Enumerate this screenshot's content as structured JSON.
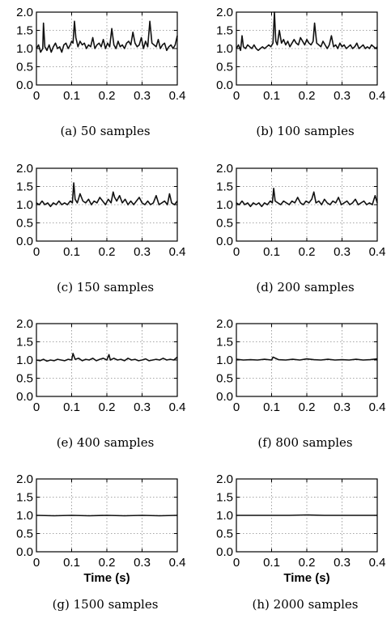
{
  "chart_data": [
    {
      "type": "line",
      "caption": "(a) 50 samples",
      "xlabel": "",
      "ylabel": "",
      "xlim": [
        0,
        0.4
      ],
      "ylim": [
        0,
        2.0
      ],
      "xticks": [
        "0",
        "0.1",
        "0.2",
        "0.3",
        "0.4"
      ],
      "yticks": [
        "0.0",
        "0.5",
        "1.0",
        "1.5",
        "2.0"
      ],
      "grid": true,
      "series": [
        {
          "x": [
            0,
            0.006,
            0.012,
            0.018,
            0.02,
            0.024,
            0.03,
            0.036,
            0.042,
            0.048,
            0.054,
            0.06,
            0.066,
            0.072,
            0.078,
            0.084,
            0.09,
            0.096,
            0.1,
            0.104,
            0.108,
            0.112,
            0.118,
            0.124,
            0.13,
            0.136,
            0.142,
            0.148,
            0.154,
            0.16,
            0.166,
            0.172,
            0.178,
            0.184,
            0.19,
            0.196,
            0.202,
            0.208,
            0.214,
            0.22,
            0.226,
            0.232,
            0.238,
            0.244,
            0.25,
            0.256,
            0.262,
            0.268,
            0.274,
            0.28,
            0.286,
            0.292,
            0.298,
            0.304,
            0.31,
            0.316,
            0.322,
            0.328,
            0.334,
            0.34,
            0.346,
            0.352,
            0.358,
            0.364,
            0.37,
            0.376,
            0.382,
            0.388,
            0.394,
            0.4
          ],
          "y": [
            1.0,
            1.1,
            0.9,
            1.0,
            1.7,
            1.05,
            0.95,
            1.1,
            0.9,
            1.05,
            1.15,
            1.0,
            1.05,
            0.9,
            1.1,
            1.15,
            1.0,
            1.1,
            1.2,
            1.15,
            1.75,
            1.3,
            1.05,
            1.2,
            1.1,
            1.15,
            1.0,
            1.1,
            1.05,
            1.3,
            1.0,
            1.1,
            1.15,
            1.05,
            1.25,
            1.0,
            1.15,
            1.05,
            1.55,
            1.1,
            1.0,
            1.2,
            1.05,
            1.1,
            1.0,
            1.15,
            1.2,
            1.1,
            1.45,
            1.15,
            1.05,
            1.1,
            1.3,
            1.0,
            1.2,
            1.05,
            1.75,
            1.15,
            1.1,
            1.05,
            1.25,
            1.0,
            1.1,
            1.15,
            0.95,
            1.05,
            1.1,
            1.0,
            1.1,
            1.35
          ]
        }
      ]
    },
    {
      "type": "line",
      "caption": "(b) 100 samples",
      "xlabel": "",
      "ylabel": "",
      "xlim": [
        0,
        0.4
      ],
      "ylim": [
        0,
        2.0
      ],
      "xticks": [
        "0",
        "0.1",
        "0.2",
        "0.3",
        "0.4"
      ],
      "yticks": [
        "0.0",
        "0.5",
        "1.0",
        "1.5",
        "2.0"
      ],
      "grid": true,
      "series": [
        {
          "x": [
            0,
            0.006,
            0.012,
            0.016,
            0.02,
            0.026,
            0.032,
            0.038,
            0.044,
            0.05,
            0.056,
            0.062,
            0.068,
            0.074,
            0.08,
            0.086,
            0.092,
            0.098,
            0.104,
            0.108,
            0.112,
            0.116,
            0.122,
            0.128,
            0.134,
            0.14,
            0.146,
            0.152,
            0.158,
            0.164,
            0.17,
            0.176,
            0.182,
            0.188,
            0.194,
            0.2,
            0.206,
            0.212,
            0.218,
            0.222,
            0.228,
            0.234,
            0.24,
            0.246,
            0.252,
            0.258,
            0.264,
            0.27,
            0.276,
            0.282,
            0.288,
            0.294,
            0.3,
            0.306,
            0.312,
            0.318,
            0.324,
            0.33,
            0.336,
            0.342,
            0.348,
            0.354,
            0.36,
            0.366,
            0.372,
            0.378,
            0.384,
            0.39,
            0.396,
            0.4
          ],
          "y": [
            1.0,
            1.1,
            0.95,
            1.35,
            1.05,
            1.0,
            1.1,
            1.05,
            1.0,
            1.1,
            1.0,
            0.95,
            1.0,
            1.05,
            1.0,
            1.05,
            1.1,
            1.05,
            1.15,
            2.0,
            1.2,
            1.1,
            1.5,
            1.15,
            1.25,
            1.1,
            1.2,
            1.05,
            1.15,
            1.25,
            1.15,
            1.1,
            1.3,
            1.2,
            1.1,
            1.25,
            1.15,
            1.1,
            1.2,
            1.7,
            1.15,
            1.1,
            1.05,
            1.2,
            1.1,
            1.0,
            1.1,
            1.35,
            1.05,
            1.1,
            1.0,
            1.15,
            1.05,
            1.1,
            1.0,
            1.05,
            1.1,
            1.0,
            1.05,
            1.15,
            1.0,
            1.05,
            1.1,
            1.0,
            1.05,
            1.0,
            1.1,
            1.05,
            1.0,
            1.05
          ]
        }
      ]
    },
    {
      "type": "line",
      "caption": "(c) 150 samples",
      "xlabel": "",
      "ylabel": "",
      "xlim": [
        0,
        0.4
      ],
      "ylim": [
        0,
        2.0
      ],
      "xticks": [
        "0",
        "0.1",
        "0.2",
        "0.3",
        "0.4"
      ],
      "yticks": [
        "0.0",
        "0.5",
        "1.0",
        "1.5",
        "2.0"
      ],
      "grid": true,
      "series": [
        {
          "x": [
            0,
            0.008,
            0.016,
            0.024,
            0.032,
            0.04,
            0.048,
            0.056,
            0.064,
            0.072,
            0.08,
            0.088,
            0.096,
            0.102,
            0.106,
            0.11,
            0.116,
            0.124,
            0.132,
            0.14,
            0.148,
            0.156,
            0.164,
            0.172,
            0.18,
            0.188,
            0.196,
            0.204,
            0.212,
            0.218,
            0.222,
            0.228,
            0.236,
            0.244,
            0.252,
            0.26,
            0.268,
            0.276,
            0.284,
            0.292,
            0.3,
            0.308,
            0.316,
            0.324,
            0.332,
            0.34,
            0.348,
            0.356,
            0.364,
            0.372,
            0.378,
            0.384,
            0.392,
            0.4
          ],
          "y": [
            1.05,
            1.0,
            1.1,
            1.0,
            1.05,
            0.95,
            1.05,
            1.0,
            1.1,
            1.0,
            1.05,
            1.0,
            1.1,
            1.05,
            1.6,
            1.15,
            1.05,
            1.3,
            1.1,
            1.05,
            1.15,
            1.0,
            1.1,
            1.05,
            1.2,
            1.1,
            1.0,
            1.15,
            1.05,
            1.35,
            1.2,
            1.1,
            1.25,
            1.05,
            1.15,
            1.0,
            1.1,
            1.0,
            1.1,
            1.2,
            1.05,
            1.0,
            1.1,
            1.0,
            1.05,
            1.25,
            1.0,
            1.05,
            1.1,
            1.0,
            1.3,
            1.05,
            1.0,
            1.1
          ]
        }
      ]
    },
    {
      "type": "line",
      "caption": "(d) 200 samples",
      "xlabel": "",
      "ylabel": "",
      "xlim": [
        0,
        0.4
      ],
      "ylim": [
        0,
        2.0
      ],
      "xticks": [
        "0",
        "0.1",
        "0.2",
        "0.3",
        "0.4"
      ],
      "yticks": [
        "0.0",
        "0.5",
        "1.0",
        "1.5",
        "2.0"
      ],
      "grid": true,
      "series": [
        {
          "x": [
            0,
            0.008,
            0.016,
            0.024,
            0.032,
            0.04,
            0.048,
            0.056,
            0.064,
            0.072,
            0.08,
            0.088,
            0.096,
            0.102,
            0.106,
            0.11,
            0.118,
            0.126,
            0.134,
            0.142,
            0.15,
            0.158,
            0.166,
            0.174,
            0.182,
            0.19,
            0.198,
            0.206,
            0.214,
            0.22,
            0.226,
            0.234,
            0.242,
            0.25,
            0.258,
            0.266,
            0.274,
            0.282,
            0.29,
            0.298,
            0.306,
            0.314,
            0.322,
            0.33,
            0.338,
            0.346,
            0.354,
            0.362,
            0.37,
            0.378,
            0.386,
            0.394,
            0.4
          ],
          "y": [
            1.05,
            1.0,
            1.1,
            1.0,
            1.05,
            0.95,
            1.05,
            1.0,
            1.05,
            0.95,
            1.05,
            1.0,
            1.1,
            1.05,
            1.45,
            1.1,
            1.05,
            1.0,
            1.1,
            1.05,
            1.0,
            1.1,
            1.05,
            1.2,
            1.05,
            1.0,
            1.1,
            1.05,
            1.15,
            1.35,
            1.05,
            1.1,
            1.0,
            1.15,
            1.05,
            1.0,
            1.1,
            1.05,
            1.2,
            1.0,
            1.05,
            1.1,
            1.0,
            1.05,
            1.15,
            1.0,
            1.05,
            1.1,
            1.0,
            1.05,
            1.0,
            1.25,
            1.05
          ]
        }
      ]
    },
    {
      "type": "line",
      "caption": "(e) 400 samples",
      "xlabel": "",
      "ylabel": "",
      "xlim": [
        0,
        0.4
      ],
      "ylim": [
        0,
        2.0
      ],
      "xticks": [
        "0",
        "0.1",
        "0.2",
        "0.3",
        "0.4"
      ],
      "yticks": [
        "0.0",
        "0.5",
        "1.0",
        "1.5",
        "2.0"
      ],
      "grid": true,
      "series": [
        {
          "x": [
            0,
            0.01,
            0.02,
            0.03,
            0.04,
            0.05,
            0.06,
            0.07,
            0.08,
            0.09,
            0.1,
            0.104,
            0.11,
            0.12,
            0.13,
            0.14,
            0.15,
            0.16,
            0.17,
            0.18,
            0.19,
            0.2,
            0.206,
            0.21,
            0.22,
            0.23,
            0.24,
            0.25,
            0.26,
            0.27,
            0.28,
            0.29,
            0.3,
            0.31,
            0.32,
            0.33,
            0.34,
            0.35,
            0.36,
            0.37,
            0.38,
            0.39,
            0.4
          ],
          "y": [
            1.0,
            0.98,
            1.02,
            0.97,
            1.0,
            0.98,
            1.02,
            1.0,
            0.98,
            1.02,
            1.0,
            1.18,
            1.02,
            1.05,
            0.98,
            1.02,
            1.0,
            1.05,
            0.98,
            1.02,
            1.05,
            1.0,
            1.15,
            1.0,
            1.05,
            1.0,
            1.02,
            0.98,
            1.05,
            1.0,
            1.02,
            0.98,
            1.0,
            1.03,
            0.98,
            1.0,
            1.02,
            1.0,
            1.05,
            1.0,
            1.02,
            1.0,
            1.08
          ]
        }
      ]
    },
    {
      "type": "line",
      "caption": "(f) 800 samples",
      "xlabel": "",
      "ylabel": "",
      "xlim": [
        0,
        0.4
      ],
      "ylim": [
        0,
        2.0
      ],
      "xticks": [
        "0",
        "0.1",
        "0.2",
        "0.3",
        "0.4"
      ],
      "yticks": [
        "0.0",
        "0.5",
        "1.0",
        "1.5",
        "2.0"
      ],
      "grid": true,
      "series": [
        {
          "x": [
            0,
            0.02,
            0.04,
            0.06,
            0.08,
            0.1,
            0.104,
            0.12,
            0.14,
            0.16,
            0.18,
            0.2,
            0.22,
            0.24,
            0.26,
            0.28,
            0.3,
            0.32,
            0.34,
            0.36,
            0.38,
            0.4
          ],
          "y": [
            1.02,
            1.0,
            1.01,
            1.0,
            1.02,
            1.0,
            1.08,
            1.01,
            1.0,
            1.02,
            1.0,
            1.03,
            1.01,
            1.0,
            1.02,
            1.0,
            1.01,
            1.0,
            1.02,
            1.0,
            1.01,
            1.03
          ]
        }
      ]
    },
    {
      "type": "line",
      "caption": "(g) 1500 samples",
      "xlabel": "Time (s)",
      "ylabel": "",
      "xlim": [
        0,
        0.4
      ],
      "ylim": [
        0,
        2.0
      ],
      "xticks": [
        "0",
        "0.1",
        "0.2",
        "0.3",
        "0.4"
      ],
      "yticks": [
        "0.0",
        "0.5",
        "1.0",
        "1.5",
        "2.0"
      ],
      "grid": true,
      "series": [
        {
          "x": [
            0,
            0.05,
            0.1,
            0.15,
            0.2,
            0.25,
            0.3,
            0.35,
            0.4
          ],
          "y": [
            1.0,
            0.99,
            1.0,
            0.99,
            1.0,
            0.99,
            1.0,
            0.99,
            1.0
          ]
        }
      ]
    },
    {
      "type": "line",
      "caption": "(h) 2000 samples",
      "xlabel": "Time (s)",
      "ylabel": "",
      "xlim": [
        0,
        0.4
      ],
      "ylim": [
        0,
        2.0
      ],
      "xticks": [
        "0",
        "0.1",
        "0.2",
        "0.3",
        "0.4"
      ],
      "yticks": [
        "0.0",
        "0.5",
        "1.0",
        "1.5",
        "2.0"
      ],
      "grid": true,
      "series": [
        {
          "x": [
            0,
            0.05,
            0.1,
            0.15,
            0.2,
            0.25,
            0.3,
            0.35,
            0.4
          ],
          "y": [
            1.0,
            1.0,
            1.0,
            1.0,
            1.01,
            1.0,
            1.0,
            1.0,
            1.0
          ]
        }
      ]
    }
  ]
}
